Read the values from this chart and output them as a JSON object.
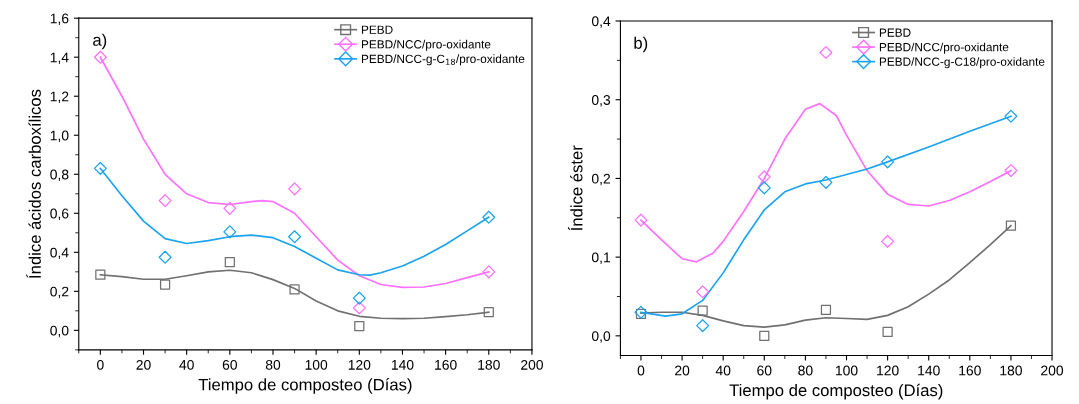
{
  "chart_data": [
    {
      "type": "scatter",
      "xlabel": "Tiempo de composteo (Días)",
      "ylabel": "Índice ácidos carboxílicos",
      "annotations": [
        "a)"
      ],
      "xlim": [
        -10,
        200
      ],
      "ylim": [
        -0.1,
        1.6
      ],
      "xticks": [
        0,
        20,
        40,
        60,
        80,
        100,
        120,
        140,
        160,
        180,
        200
      ],
      "yticks": [
        {
          "value": 0,
          "label": "0,0"
        },
        {
          "value": 0.2,
          "label": "0,2"
        },
        {
          "value": 0.4,
          "label": "0,4"
        },
        {
          "value": 0.6,
          "label": "0,6"
        },
        {
          "value": 0.8,
          "label": "0,8"
        },
        {
          "value": 1.0,
          "label": "1,0"
        },
        {
          "value": 1.2,
          "label": "1,2"
        },
        {
          "value": 1.4,
          "label": "1,4"
        },
        {
          "value": 1.6,
          "label": "1,6"
        }
      ],
      "grid": false,
      "legend": "top right",
      "series": [
        {
          "type": "line",
          "color": "#707070",
          "marker": "none",
          "line_style": "solid",
          "x": [
            0,
            10,
            20,
            30,
            40,
            50,
            60,
            70,
            80,
            90,
            100,
            110,
            120,
            130,
            140,
            150,
            160,
            170,
            180
          ],
          "values": [
            0.285,
            0.275,
            0.262,
            0.262,
            0.28,
            0.3,
            0.308,
            0.295,
            0.26,
            0.215,
            0.15,
            0.1,
            0.072,
            0.062,
            0.06,
            0.062,
            0.07,
            0.08,
            0.093
          ]
        },
        {
          "type": "line",
          "color": "#ff70ff",
          "marker": "none",
          "line_style": "solid",
          "x": [
            0,
            10,
            20,
            30,
            40,
            50,
            60,
            70,
            75,
            80,
            90,
            100,
            110,
            120,
            130,
            140,
            150,
            160,
            170,
            180
          ],
          "values": [
            1.4,
            1.2,
            0.98,
            0.8,
            0.7,
            0.655,
            0.645,
            0.66,
            0.665,
            0.66,
            0.6,
            0.48,
            0.36,
            0.28,
            0.235,
            0.22,
            0.222,
            0.24,
            0.27,
            0.3
          ]
        },
        {
          "type": "line",
          "color": "#1aa3f0",
          "marker": "none",
          "line_style": "solid",
          "x": [
            0,
            10,
            20,
            30,
            40,
            50,
            60,
            70,
            80,
            90,
            100,
            110,
            120,
            125,
            130,
            140,
            150,
            160,
            170,
            180
          ],
          "values": [
            0.83,
            0.69,
            0.56,
            0.47,
            0.445,
            0.46,
            0.48,
            0.488,
            0.475,
            0.43,
            0.37,
            0.31,
            0.285,
            0.283,
            0.295,
            0.33,
            0.38,
            0.44,
            0.51,
            0.58
          ]
        },
        {
          "name": "PEBD",
          "color": "#707070",
          "marker": "square",
          "x": [
            0,
            30,
            60,
            90,
            120,
            180
          ],
          "values": [
            0.285,
            0.235,
            0.35,
            0.21,
            0.022,
            0.093
          ]
        },
        {
          "name": "PEBD/NCC/pro-oxidante",
          "color": "#ff70ff",
          "marker": "diamond",
          "x": [
            0,
            30,
            60,
            90,
            120,
            180
          ],
          "values": [
            1.4,
            0.665,
            0.625,
            0.725,
            0.115,
            0.3
          ]
        },
        {
          "name": "PEBD/NCC-g-C$_{18}$/pro-oxidante",
          "color": "#1aa3f0",
          "marker": "diamond",
          "x": [
            0,
            30,
            60,
            90,
            120,
            180
          ],
          "values": [
            0.83,
            0.375,
            0.505,
            0.48,
            0.165,
            0.58
          ]
        }
      ]
    },
    {
      "type": "scatter",
      "xlabel": "Tiempo de composteo (Días)",
      "ylabel": "Índice éster",
      "annotations": [
        "b)"
      ],
      "xlim": [
        -10,
        200
      ],
      "ylim": [
        -0.025,
        0.4
      ],
      "xticks": [
        0,
        20,
        40,
        60,
        80,
        100,
        120,
        140,
        160,
        180,
        200
      ],
      "yticks": [
        {
          "value": 0,
          "label": "0,0"
        },
        {
          "value": 0.1,
          "label": "0,1"
        },
        {
          "value": 0.2,
          "label": "0,2"
        },
        {
          "value": 0.3,
          "label": "0,3"
        },
        {
          "value": 0.4,
          "label": "0,4"
        }
      ],
      "grid": false,
      "legend": "top right",
      "series": [
        {
          "type": "line",
          "color": "#707070",
          "marker": "none",
          "line_style": "solid",
          "x": [
            0,
            10,
            20,
            30,
            40,
            50,
            60,
            70,
            80,
            90,
            100,
            110,
            120,
            130,
            140,
            150,
            160,
            170,
            180
          ],
          "values": [
            0.029,
            0.03,
            0.03,
            0.026,
            0.019,
            0.013,
            0.011,
            0.014,
            0.02,
            0.023,
            0.022,
            0.021,
            0.026,
            0.037,
            0.053,
            0.071,
            0.093,
            0.116,
            0.14
          ]
        },
        {
          "type": "line",
          "color": "#ff70ff",
          "marker": "none",
          "line_style": "solid",
          "x": [
            0,
            10,
            20,
            27,
            35,
            40,
            50,
            60,
            70,
            80,
            87,
            95,
            100,
            110,
            120,
            130,
            140,
            150,
            160,
            170,
            180
          ],
          "values": [
            0.147,
            0.122,
            0.098,
            0.094,
            0.105,
            0.12,
            0.158,
            0.2,
            0.25,
            0.288,
            0.295,
            0.28,
            0.255,
            0.21,
            0.18,
            0.167,
            0.165,
            0.172,
            0.183,
            0.196,
            0.21
          ]
        },
        {
          "type": "line",
          "color": "#1aa3f0",
          "marker": "none",
          "line_style": "solid",
          "x": [
            0,
            12,
            20,
            30,
            40,
            50,
            60,
            70,
            80,
            90,
            100,
            110,
            120,
            140,
            160,
            180
          ],
          "values": [
            0.03,
            0.025,
            0.028,
            0.045,
            0.08,
            0.122,
            0.16,
            0.183,
            0.193,
            0.198,
            0.205,
            0.212,
            0.221,
            0.24,
            0.26,
            0.279
          ]
        },
        {
          "name": "PEBD",
          "color": "#707070",
          "marker": "square",
          "x": [
            0,
            30,
            60,
            90,
            120,
            180
          ],
          "values": [
            0.028,
            0.032,
            0.0,
            0.033,
            0.005,
            0.14
          ]
        },
        {
          "name": "PEBD/NCC/pro-oxidante",
          "color": "#ff70ff",
          "marker": "diamond",
          "x": [
            0,
            30,
            60,
            90,
            120,
            180
          ],
          "values": [
            0.147,
            0.056,
            0.202,
            0.36,
            0.12,
            0.21
          ]
        },
        {
          "name": "PEBD/NCC-g-C18/pro-oxidante",
          "color": "#1aa3f0",
          "marker": "diamond",
          "x": [
            0,
            30,
            60,
            90,
            120,
            180
          ],
          "values": [
            0.03,
            0.013,
            0.188,
            0.195,
            0.221,
            0.279
          ]
        }
      ]
    }
  ]
}
